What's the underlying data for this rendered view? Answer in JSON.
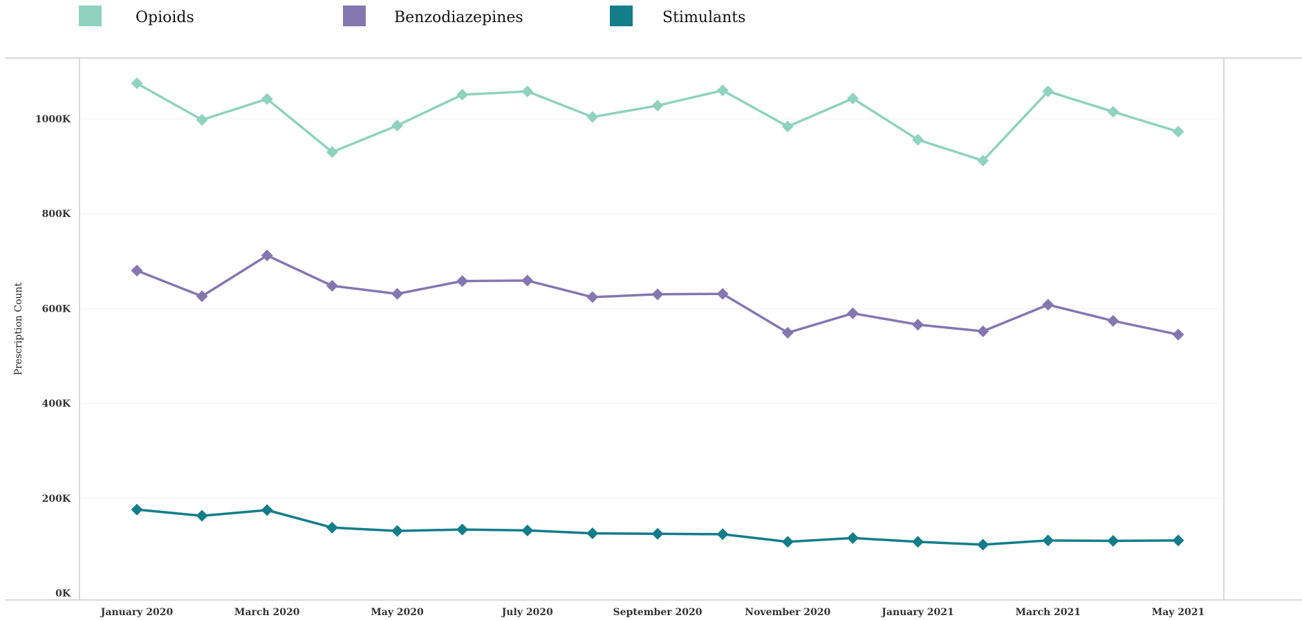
{
  "chart_data": {
    "type": "line",
    "ylabel": "Prescription Count",
    "xlabel": "",
    "ylim": [
      0,
      1140000
    ],
    "grid": true,
    "legend_position": "top-left",
    "x_tick_labels": [
      "January 2020",
      "March 2020",
      "May 2020",
      "July 2020",
      "September 2020",
      "November 2020",
      "January 2021",
      "March 2021",
      "May 2021"
    ],
    "x_tick_indices": [
      0,
      2,
      4,
      6,
      8,
      10,
      12,
      14,
      16
    ],
    "categories": [
      "January 2020",
      "February 2020",
      "March 2020",
      "April 2020",
      "May 2020",
      "June 2020",
      "July 2020",
      "August 2020",
      "September 2020",
      "October 2020",
      "November 2020",
      "December 2020",
      "January 2021",
      "February 2021",
      "March 2021",
      "April 2021",
      "May 2021"
    ],
    "y_ticks": [
      0,
      200000,
      400000,
      600000,
      800000,
      1000000
    ],
    "y_tick_labels": [
      "0K",
      "200K",
      "400K",
      "600K",
      "800K",
      "1000K"
    ],
    "series": [
      {
        "name": "Opioids",
        "color": "#8fd2bd",
        "values": [
          1075000,
          998000,
          1042000,
          930000,
          986000,
          1051000,
          1058000,
          1004000,
          1028000,
          1060000,
          984000,
          1043000,
          956000,
          912000,
          1058000,
          1015000,
          973000
        ]
      },
      {
        "name": "Benzodiazepines",
        "color": "#8477b0",
        "values": [
          680000,
          626000,
          712000,
          648000,
          631000,
          658000,
          659000,
          624000,
          630000,
          631000,
          549000,
          590000,
          566000,
          552000,
          608000,
          574000,
          545000
        ]
      },
      {
        "name": "Stimulants",
        "color": "#137d8a",
        "values": [
          176000,
          163000,
          175000,
          138000,
          131000,
          134000,
          132000,
          126000,
          125000,
          124000,
          108000,
          116000,
          108000,
          102000,
          111000,
          110000,
          111000
        ]
      }
    ]
  }
}
